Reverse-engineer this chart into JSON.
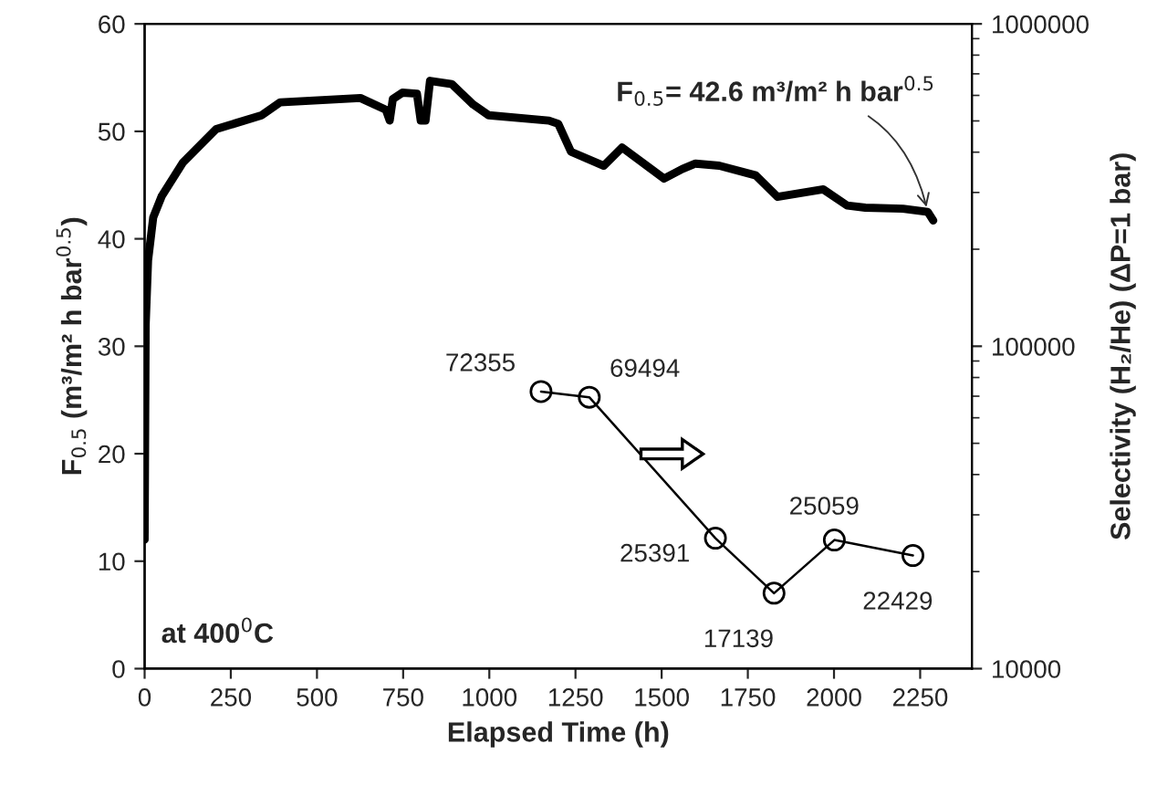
{
  "chart_data": {
    "type": "line",
    "xlabel": "Elapsed Time (h)",
    "ylabel": "F$_{0.5}$ (m³/m² h bar$^{0.5}$)",
    "y2label": "Selectivity (H₂/He) (ΔP=1 bar)",
    "xlim": [
      0,
      2400
    ],
    "xticks": [
      0,
      250,
      500,
      750,
      1000,
      1250,
      1500,
      1750,
      2000,
      2250
    ],
    "ylim": [
      0,
      60
    ],
    "yticks": [
      0,
      10,
      20,
      30,
      40,
      50,
      60
    ],
    "y2lim": [
      10000,
      1000000
    ],
    "y2ticks": [
      10000,
      100000,
      1000000
    ],
    "log": "y2",
    "grid": false,
    "legend": false,
    "series": [
      {
        "color": "#000000",
        "line_style": "solid",
        "marker": "none",
        "x": [
          0,
          3,
          10,
          25,
          50,
          111,
          207,
          340,
          393,
          626,
          700,
          711,
          720,
          748,
          790,
          801,
          815,
          828,
          891,
          953,
          998,
          1173,
          1200,
          1237,
          1332,
          1385,
          1507,
          1560,
          1598,
          1667,
          1773,
          1836,
          1969,
          2038,
          2091,
          2200,
          2272,
          2288
        ],
        "values": [
          12,
          32,
          38,
          42,
          44,
          47.1,
          50.2,
          51.5,
          52.7,
          53.1,
          52,
          51.0,
          53,
          53.6,
          53.5,
          51.0,
          51,
          54.7,
          54.4,
          52.5,
          51.5,
          51.0,
          50.7,
          48.1,
          46.8,
          48.5,
          45.6,
          46.5,
          47.0,
          46.8,
          45.9,
          43.9,
          44.6,
          43.1,
          42.9,
          42.8,
          42.5,
          41.7
        ]
      },
      {
        "color": "#000000",
        "line_style": "solid",
        "marker": "circle",
        "axis": "y2",
        "x": [
          1150,
          1290,
          1656,
          1826,
          2001,
          2229
        ],
        "values": [
          72355,
          69494,
          25391,
          17139,
          25059,
          22429
        ],
        "value_labels": [
          "72355",
          "69494",
          "25391",
          "17139",
          "25059",
          "22429"
        ]
      }
    ],
    "annotations": [
      {
        "text": "F$_{0.5}$= 42.6 m³/m² h bar$^{0.5}$",
        "x": 2272,
        "y": 42.5
      },
      "at 400$^{0}$C"
    ]
  }
}
